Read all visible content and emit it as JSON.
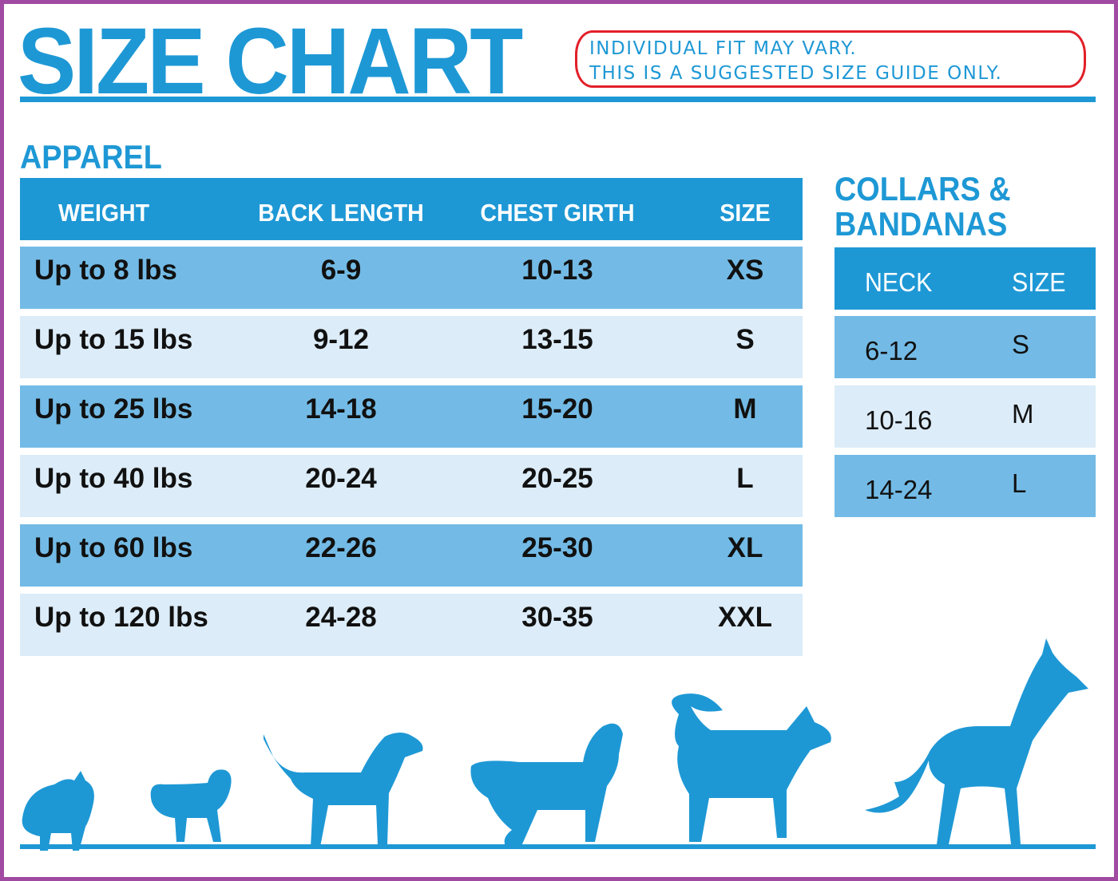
{
  "title": "SIZE CHART",
  "disclaimer": {
    "line1": "INDIVIDUAL FIT MAY VARY.",
    "line2": "THIS IS A SUGGESTED SIZE GUIDE ONLY."
  },
  "apparel": {
    "heading": "APPAREL",
    "columns": [
      "WEIGHT",
      "BACK LENGTH",
      "CHEST GIRTH",
      "SIZE"
    ],
    "rows": [
      [
        "Up to 8 lbs",
        "6-9",
        "10-13",
        "XS"
      ],
      [
        "Up to 15 lbs",
        "9-12",
        "13-15",
        "S"
      ],
      [
        "Up to 25 lbs",
        "14-18",
        "15-20",
        "M"
      ],
      [
        "Up to 40 lbs",
        "20-24",
        "20-25",
        "L"
      ],
      [
        "Up to 60 lbs",
        "22-26",
        "25-30",
        "XL"
      ],
      [
        "Up to 120 lbs",
        "24-28",
        "30-35",
        "XXL"
      ]
    ]
  },
  "collars": {
    "heading_line1": "COLLARS &",
    "heading_line2": "BANDANAS",
    "columns": [
      "NECK",
      "SIZE"
    ],
    "rows": [
      [
        "6-12",
        "S"
      ],
      [
        "10-16",
        "M"
      ],
      [
        "14-24",
        "L"
      ]
    ]
  },
  "colors": {
    "brand_blue": "#1e98d5",
    "row_dark": "#73bbe6",
    "row_light": "#dcecf8",
    "border": "#a04aa2",
    "note_outline": "#e2202a"
  },
  "illustration": [
    "pomeranian-silhouette",
    "pug-silhouette",
    "beagle-silhouette",
    "spaniel-silhouette",
    "husky-silhouette",
    "great-dane-silhouette"
  ]
}
